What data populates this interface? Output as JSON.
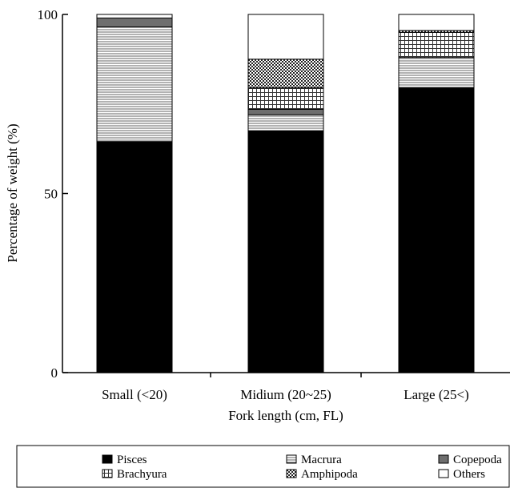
{
  "chart_data": {
    "type": "bar",
    "stacked": true,
    "title": "",
    "xlabel": "Fork length (cm, FL)",
    "ylabel": "Percentage of weight (%)",
    "ylim": [
      0,
      100
    ],
    "yticks": [
      "0",
      "50",
      "100"
    ],
    "categories": [
      "Small (<20)",
      "Midium (20~25)",
      "Large (25<)"
    ],
    "series": [
      {
        "name": "Pisces",
        "pattern": "solid-black",
        "values": [
          64.5,
          67.5,
          79.5
        ]
      },
      {
        "name": "Macrura",
        "pattern": "horizontal-lines",
        "values": [
          32.0,
          4.5,
          8.5
        ]
      },
      {
        "name": "Copepoda",
        "pattern": "solid-gray",
        "values": [
          2.5,
          1.5,
          0.0
        ]
      },
      {
        "name": "Brachyura",
        "pattern": "grid",
        "values": [
          0.0,
          6.0,
          7.0
        ]
      },
      {
        "name": "Amphipoda",
        "pattern": "cross-hatch",
        "values": [
          0.0,
          8.0,
          0.5
        ]
      },
      {
        "name": "Others",
        "pattern": "white",
        "values": [
          1.0,
          12.5,
          4.5
        ]
      }
    ],
    "legend_position": "bottom",
    "colors": {
      "pisces": "#000000",
      "copepoda": "#6e6e6e",
      "others": "#ffffff",
      "hatch": "#555555"
    }
  }
}
